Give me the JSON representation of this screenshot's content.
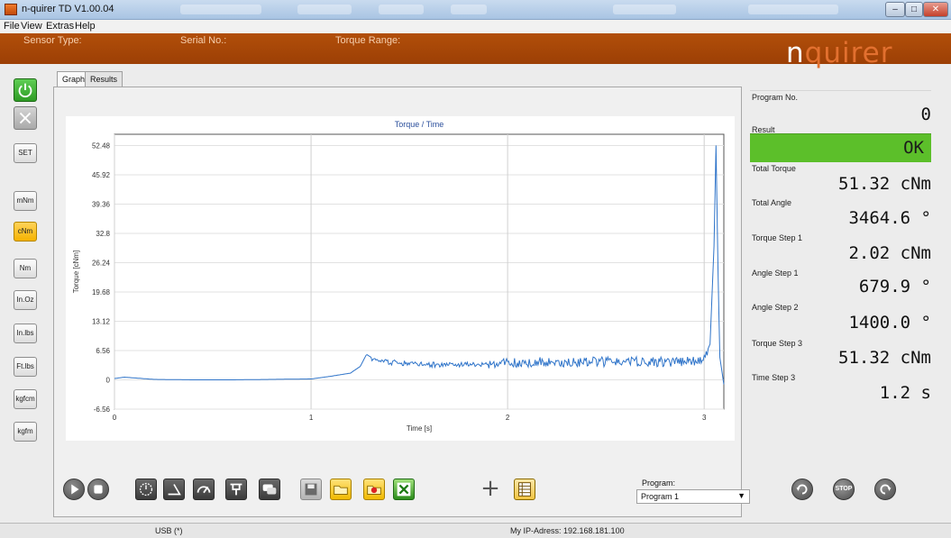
{
  "window": {
    "title": "n-quirer TD V1.00.04",
    "minimize_icon": "minimize-icon",
    "maximize_icon": "maximize-icon",
    "close_icon": "close-icon"
  },
  "menu": [
    {
      "label": "File",
      "key": "F"
    },
    {
      "label": "View",
      "key": "V"
    },
    {
      "label": "Extras",
      "key": "E"
    },
    {
      "label": "Help",
      "key": "H"
    }
  ],
  "header": {
    "sensor_type_label": "Sensor Type:",
    "serial_no_label": "Serial No.:",
    "torque_range_label": "Torque Range:",
    "logo_a": "n",
    "logo_b": "quirer",
    "brand_color": "#a64707"
  },
  "left_toolbar": {
    "power_icon": "power-icon",
    "cancel_icon": "x-icon",
    "set_label": "SET",
    "units": [
      "mNm",
      "cNm",
      "Nm",
      "In.Oz",
      "In.lbs",
      "Ft.lbs",
      "kgfcm",
      "kgfm"
    ],
    "active_unit": "cNm"
  },
  "tabs": [
    {
      "label": "Graph",
      "selected": true
    },
    {
      "label": "Results",
      "selected": false
    }
  ],
  "chart_data": {
    "type": "line",
    "title": "Torque / Time",
    "xlabel": "Time [s]",
    "ylabel": "Torque [cNm]",
    "xlim": [
      0,
      3.1
    ],
    "ylim": [
      -6.56,
      55
    ],
    "xticks": [
      0,
      1,
      2,
      3
    ],
    "yticks": [
      -6.56,
      0,
      6.56,
      13.12,
      19.68,
      26.24,
      32.8,
      39.36,
      45.92,
      52.48
    ],
    "grid": true,
    "series": [
      {
        "color": "#2f74c9",
        "x": [
          0,
          0.05,
          0.2,
          0.4,
          0.6,
          0.8,
          1.0,
          1.1,
          1.2,
          1.25,
          1.28,
          1.3,
          1.4,
          1.6,
          1.8,
          2.0,
          2.2,
          2.4,
          2.6,
          2.8,
          2.95,
          3.0,
          3.03,
          3.05,
          3.06,
          3.07,
          3.08,
          3.1
        ],
        "y": [
          0.3,
          0.6,
          0.1,
          0.0,
          0.0,
          0.1,
          0.2,
          0.8,
          1.5,
          3.0,
          5.5,
          4.6,
          3.9,
          3.4,
          3.5,
          3.8,
          4.0,
          4.0,
          4.1,
          4.0,
          4.2,
          5.0,
          8.0,
          30.0,
          52.5,
          25.0,
          5.0,
          -1.0
        ]
      }
    ]
  },
  "results_panel": [
    {
      "label": "Program No.",
      "value": "0"
    },
    {
      "label": "Result",
      "value": "OK"
    },
    {
      "label": "Total Torque",
      "value": "51.32 cNm"
    },
    {
      "label": "Total Angle",
      "value": "3464.6 °"
    },
    {
      "label": "Torque Step 1",
      "value": "2.02 cNm"
    },
    {
      "label": "Angle Step 1",
      "value": "679.9 °"
    },
    {
      "label": "Angle Step 2",
      "value": "1400.0 °"
    },
    {
      "label": "Torque Step 3",
      "value": "51.32 cNm"
    },
    {
      "label": "Time Step 3",
      "value": "1.2 s"
    }
  ],
  "result_ok_color": "#5cbf2a",
  "bottom_toolbar": {
    "icons": [
      "play-icon",
      "stop-record-icon",
      "timer-icon",
      "angle-icon",
      "gauge-icon",
      "fixture-icon",
      "chat-icon",
      "save-icon",
      "open-folder-icon",
      "delete-file-icon",
      "excel-export-icon",
      "crosshair-icon",
      "table-icon"
    ],
    "program_label": "Program:",
    "program_value": "Program 1",
    "right_icons": [
      "rotate-cw-icon",
      "stop-icon",
      "rotate-ccw-icon"
    ],
    "stop_text": "STOP"
  },
  "status": {
    "connection": "USB (*)",
    "ip": "My IP-Adress: 192.168.181.100"
  }
}
